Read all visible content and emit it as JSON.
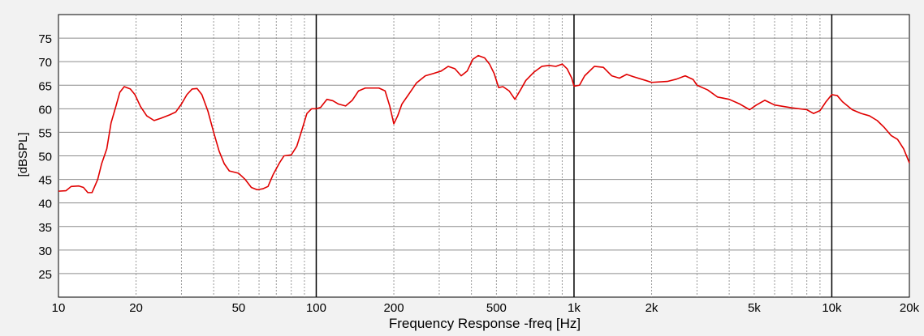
{
  "chart_data": {
    "type": "line",
    "title": "",
    "xlabel": "Frequency Response -freq [Hz]",
    "ylabel": "[dBSPL]",
    "x_scale": "log",
    "xlim": [
      10,
      20000
    ],
    "ylim": [
      20,
      80
    ],
    "grid": true,
    "x_ticks": [
      {
        "value": 10,
        "label": "10"
      },
      {
        "value": 20,
        "label": "20"
      },
      {
        "value": 50,
        "label": "50"
      },
      {
        "value": 100,
        "label": "100"
      },
      {
        "value": 200,
        "label": "200"
      },
      {
        "value": 500,
        "label": "500"
      },
      {
        "value": 1000,
        "label": "1k"
      },
      {
        "value": 2000,
        "label": "2k"
      },
      {
        "value": 5000,
        "label": "5k"
      },
      {
        "value": 10000,
        "label": "10k"
      },
      {
        "value": 20000,
        "label": "20k"
      }
    ],
    "y_ticks": [
      25,
      30,
      35,
      40,
      45,
      50,
      55,
      60,
      65,
      70,
      75
    ],
    "series": [
      {
        "color": "#e00000",
        "points": [
          [
            10,
            42.5
          ],
          [
            10.7,
            42.6
          ],
          [
            11.2,
            43.5
          ],
          [
            12.0,
            43.6
          ],
          [
            12.5,
            43.3
          ],
          [
            13.0,
            42.2
          ],
          [
            13.5,
            42.2
          ],
          [
            14.2,
            45.0
          ],
          [
            14.7,
            48.3
          ],
          [
            15.4,
            51.5
          ],
          [
            16.0,
            57.0
          ],
          [
            16.7,
            60.5
          ],
          [
            17.3,
            63.5
          ],
          [
            18.0,
            64.7
          ],
          [
            19.0,
            64.2
          ],
          [
            19.8,
            63.0
          ],
          [
            20.8,
            60.5
          ],
          [
            22.0,
            58.5
          ],
          [
            23.5,
            57.5
          ],
          [
            25.0,
            58.0
          ],
          [
            27.0,
            58.7
          ],
          [
            28.5,
            59.3
          ],
          [
            30.0,
            61.0
          ],
          [
            31.5,
            63.0
          ],
          [
            33.0,
            64.2
          ],
          [
            34.5,
            64.3
          ],
          [
            36.0,
            63.0
          ],
          [
            38.0,
            59.5
          ],
          [
            40.0,
            55.0
          ],
          [
            42.0,
            51.0
          ],
          [
            44.0,
            48.3
          ],
          [
            46.0,
            46.8
          ],
          [
            50.0,
            46.3
          ],
          [
            53.0,
            45.0
          ],
          [
            56.0,
            43.3
          ],
          [
            59.0,
            42.8
          ],
          [
            62.0,
            43.0
          ],
          [
            65.0,
            43.5
          ],
          [
            68.0,
            46.0
          ],
          [
            72.0,
            48.5
          ],
          [
            75.0,
            50.0
          ],
          [
            80.0,
            50.2
          ],
          [
            84.0,
            52.0
          ],
          [
            88.0,
            55.5
          ],
          [
            92.0,
            59.0
          ],
          [
            96.0,
            60.0
          ],
          [
            100.0,
            60.0
          ],
          [
            104.0,
            60.3
          ],
          [
            110.0,
            62.0
          ],
          [
            116.0,
            61.7
          ],
          [
            122.0,
            61.0
          ],
          [
            130.0,
            60.6
          ],
          [
            138.0,
            61.8
          ],
          [
            146.0,
            63.8
          ],
          [
            155.0,
            64.4
          ],
          [
            165.0,
            64.4
          ],
          [
            175.0,
            64.4
          ],
          [
            185.0,
            63.8
          ],
          [
            193.0,
            60.5
          ],
          [
            200.0,
            56.8
          ],
          [
            207.0,
            58.5
          ],
          [
            215.0,
            61.0
          ],
          [
            228.0,
            63.0
          ],
          [
            245.0,
            65.5
          ],
          [
            265.0,
            67.0
          ],
          [
            285.0,
            67.5
          ],
          [
            305.0,
            68.0
          ],
          [
            325.0,
            69.0
          ],
          [
            345.0,
            68.5
          ],
          [
            365.0,
            67.0
          ],
          [
            385.0,
            68.0
          ],
          [
            405.0,
            70.5
          ],
          [
            425.0,
            71.3
          ],
          [
            450.0,
            70.8
          ],
          [
            470.0,
            69.5
          ],
          [
            490.0,
            67.5
          ],
          [
            510.0,
            64.5
          ],
          [
            530.0,
            64.7
          ],
          [
            560.0,
            63.8
          ],
          [
            590.0,
            62.0
          ],
          [
            620.0,
            64.0
          ],
          [
            650.0,
            66.0
          ],
          [
            700.0,
            67.8
          ],
          [
            750.0,
            69.0
          ],
          [
            800.0,
            69.2
          ],
          [
            850.0,
            69.0
          ],
          [
            900.0,
            69.5
          ],
          [
            940.0,
            68.5
          ],
          [
            980.0,
            66.5
          ],
          [
            1000.0,
            64.8
          ],
          [
            1050.0,
            65.0
          ],
          [
            1100.0,
            67.0
          ],
          [
            1200.0,
            69.0
          ],
          [
            1300.0,
            68.8
          ],
          [
            1400.0,
            67.0
          ],
          [
            1500.0,
            66.5
          ],
          [
            1600.0,
            67.3
          ],
          [
            1700.0,
            66.8
          ],
          [
            1900.0,
            66.0
          ],
          [
            2000.0,
            65.6
          ],
          [
            2300.0,
            65.8
          ],
          [
            2500.0,
            66.3
          ],
          [
            2700.0,
            67.0
          ],
          [
            2900.0,
            66.2
          ],
          [
            3000.0,
            65.0
          ],
          [
            3300.0,
            64.0
          ],
          [
            3600.0,
            62.5
          ],
          [
            4000.0,
            62.0
          ],
          [
            4400.0,
            61.0
          ],
          [
            4800.0,
            59.8
          ],
          [
            5100.0,
            60.8
          ],
          [
            5500.0,
            61.8
          ],
          [
            6000.0,
            60.8
          ],
          [
            7000.0,
            60.2
          ],
          [
            8000.0,
            59.8
          ],
          [
            8500.0,
            59.0
          ],
          [
            9000.0,
            59.6
          ],
          [
            9500.0,
            61.5
          ],
          [
            10000.0,
            63.0
          ],
          [
            10500.0,
            62.8
          ],
          [
            11000.0,
            61.5
          ],
          [
            12000.0,
            59.8
          ],
          [
            13000.0,
            59.0
          ],
          [
            14000.0,
            58.5
          ],
          [
            15000.0,
            57.5
          ],
          [
            16000.0,
            56.0
          ],
          [
            17000.0,
            54.3
          ],
          [
            18000.0,
            53.5
          ],
          [
            19000.0,
            51.5
          ],
          [
            20000.0,
            48.5
          ]
        ]
      }
    ]
  }
}
